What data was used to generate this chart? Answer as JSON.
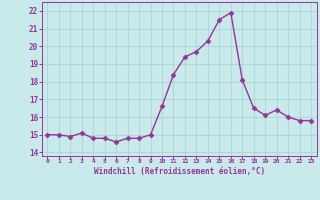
{
  "x": [
    0,
    1,
    2,
    3,
    4,
    5,
    6,
    7,
    8,
    9,
    10,
    11,
    12,
    13,
    14,
    15,
    16,
    17,
    18,
    19,
    20,
    21,
    22,
    23
  ],
  "y": [
    15.0,
    15.0,
    14.9,
    15.1,
    14.8,
    14.8,
    14.6,
    14.8,
    14.8,
    15.0,
    16.6,
    18.4,
    19.4,
    19.7,
    20.3,
    21.5,
    21.9,
    18.1,
    16.5,
    16.1,
    16.4,
    16.0,
    15.8,
    15.8
  ],
  "line_color": "#993399",
  "marker": "D",
  "marker_size": 2.5,
  "bg_color": "#c8eaea",
  "grid_color": "#b0d8d8",
  "xlabel": "Windchill (Refroidissement éolien,°C)",
  "tick_color": "#993399",
  "ylim": [
    13.8,
    22.5
  ],
  "xlim": [
    -0.5,
    23.5
  ],
  "yticks": [
    14,
    15,
    16,
    17,
    18,
    19,
    20,
    21,
    22
  ],
  "xticks": [
    0,
    1,
    2,
    3,
    4,
    5,
    6,
    7,
    8,
    9,
    10,
    11,
    12,
    13,
    14,
    15,
    16,
    17,
    18,
    19,
    20,
    21,
    22,
    23
  ],
  "line_width": 1.0,
  "spine_color": "#993399"
}
